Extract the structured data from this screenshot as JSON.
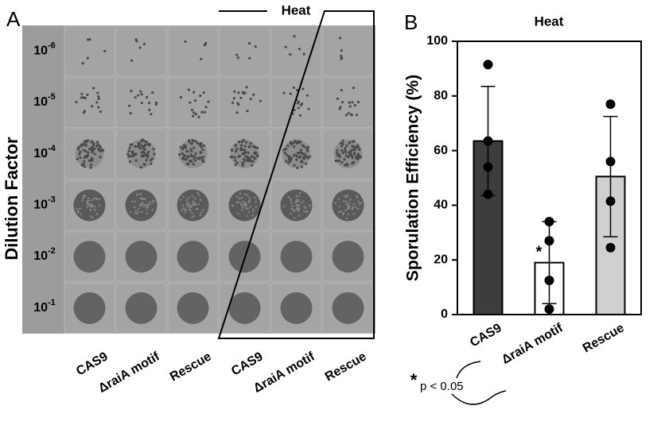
{
  "panel_a": {
    "label": "A",
    "axis_title": "Dilution Factor",
    "group_label": "Heat",
    "rows": [
      {
        "base": "10",
        "exponent": "-6"
      },
      {
        "base": "10",
        "exponent": "-5"
      },
      {
        "base": "10",
        "exponent": "-4"
      },
      {
        "base": "10",
        "exponent": "-3"
      },
      {
        "base": "10",
        "exponent": "-2"
      },
      {
        "base": "10",
        "exponent": "-1"
      }
    ],
    "columns": [
      "CAS9",
      "ΔraiA motif",
      "Rescue",
      "CAS9",
      "ΔraiA motif",
      "Rescue"
    ]
  },
  "chart_data": {
    "type": "bar",
    "panel_label": "B",
    "title": "Heat",
    "y_label": "Sporulation Efficiency (%)",
    "categories": [
      "CAS9",
      "ΔraiA motif",
      "Rescue"
    ],
    "values": [
      63.5,
      19,
      50.5
    ],
    "errors": [
      20,
      15,
      22
    ],
    "colors": [
      "#3d3d3d",
      "#ffffff",
      "#d0d0d0"
    ],
    "points": [
      [
        91.5,
        63.5,
        54,
        44
      ],
      [
        34,
        27,
        12.5,
        2
      ],
      [
        77,
        56,
        41.5,
        24.5
      ]
    ],
    "ylim": [
      0,
      100
    ],
    "yticks": [
      0,
      20,
      40,
      60,
      80,
      100
    ],
    "grid": false,
    "annotation": "*",
    "footnote_marker": "*",
    "footnote_text": "p < 0.05"
  }
}
